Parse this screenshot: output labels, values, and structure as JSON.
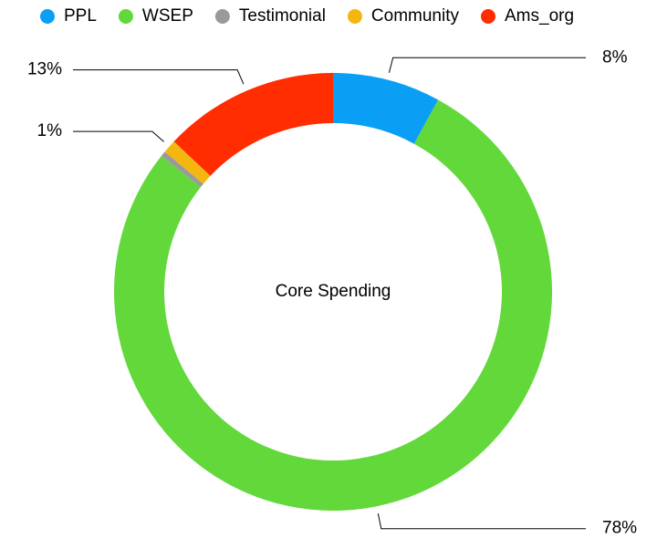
{
  "chart_data": {
    "type": "donut",
    "title": "Core Spending",
    "categories": [
      "PPL",
      "WSEP",
      "Testimonial",
      "Community",
      "Ams_org"
    ],
    "values": [
      8,
      78,
      0.4,
      1,
      13
    ],
    "value_labels": [
      "8%",
      "78%",
      null,
      "1%",
      "13%"
    ],
    "colors": [
      "#0a9ff5",
      "#62d83b",
      "#9a9a9a",
      "#f5b70f",
      "#ff2d00"
    ],
    "legend": "top"
  }
}
